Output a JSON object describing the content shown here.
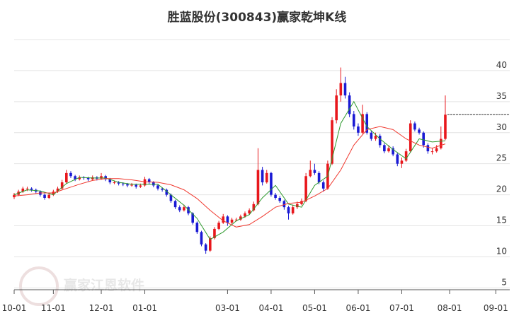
{
  "chart_data": {
    "type": "candlestick",
    "title": "胜蓝股份(300843)赢家乾坤K线",
    "watermark": "赢家江恩软件",
    "up_color": "#e8171c",
    "down_color": "#1a1ad4",
    "ylim": [
      4.7,
      45
    ],
    "yticks": [
      5,
      10,
      15,
      20,
      25,
      30,
      35,
      40
    ],
    "xlim": [
      0,
      113.8
    ],
    "xticks": [
      {
        "value": 0,
        "label": "10-01"
      },
      {
        "value": 9,
        "label": "11-01"
      },
      {
        "value": 20,
        "label": "12-01"
      },
      {
        "value": 30,
        "label": "01-01"
      },
      {
        "value": 49,
        "label": "03-01"
      },
      {
        "value": 59,
        "label": "04-01"
      },
      {
        "value": 69,
        "label": "05-01"
      },
      {
        "value": 79,
        "label": "06-01"
      },
      {
        "value": 89,
        "label": "07-01"
      },
      {
        "value": 100,
        "label": "08-01"
      },
      {
        "value": 110.6,
        "label": "09-01"
      }
    ],
    "grid": true,
    "last_price": 32.9,
    "candles": [
      [
        19.6,
        20.3,
        19.3,
        20
      ],
      [
        20,
        20.8,
        19.8,
        20.5
      ],
      [
        20.5,
        21.3,
        20.3,
        21
      ],
      [
        21,
        21.3,
        20.6,
        21
      ],
      [
        21,
        21.2,
        20.5,
        20.8
      ],
      [
        20.8,
        21,
        20.2,
        20.5
      ],
      [
        20.5,
        20.7,
        19.7,
        20
      ],
      [
        20,
        20.2,
        19.2,
        19.5
      ],
      [
        19.5,
        20.3,
        19.3,
        20
      ],
      [
        20,
        20.8,
        19.8,
        20.5
      ],
      [
        20.5,
        21.3,
        20.3,
        21
      ],
      [
        21,
        22.4,
        20.8,
        22
      ],
      [
        22,
        24,
        21.8,
        23.5
      ],
      [
        23.5,
        23.8,
        22.7,
        23
      ],
      [
        23,
        23.2,
        22.2,
        22.5
      ],
      [
        22.5,
        23.1,
        22.3,
        22.8
      ],
      [
        22.8,
        23,
        22.4,
        22.7
      ],
      [
        22.7,
        22.9,
        22.2,
        22.5
      ],
      [
        22.5,
        23.1,
        22.3,
        22.8
      ],
      [
        22.8,
        23,
        22.3,
        22.6
      ],
      [
        22.6,
        23.5,
        22.4,
        23
      ],
      [
        23,
        23.2,
        22.2,
        22.5
      ],
      [
        22.5,
        22.7,
        21.7,
        22
      ],
      [
        22,
        22.3,
        21.7,
        22
      ],
      [
        22,
        22.2,
        21.5,
        21.8
      ],
      [
        21.8,
        22,
        21.4,
        21.7
      ],
      [
        21.7,
        21.9,
        21.2,
        21.5
      ],
      [
        21.5,
        21.9,
        21.3,
        21.6
      ],
      [
        21.6,
        21.8,
        21,
        21.3
      ],
      [
        21.3,
        21.8,
        21.1,
        21.5
      ],
      [
        21.5,
        22.9,
        21.3,
        22.5
      ],
      [
        22.5,
        22.7,
        21.7,
        22
      ],
      [
        22,
        22.2,
        21.2,
        21.5
      ],
      [
        21.5,
        21.7,
        20.7,
        21
      ],
      [
        21,
        21.2,
        20.5,
        20.8
      ],
      [
        20.8,
        21,
        19.7,
        20
      ],
      [
        20,
        20.2,
        18.7,
        19
      ],
      [
        19,
        19.2,
        17.7,
        18
      ],
      [
        18,
        18.3,
        17.2,
        17.5
      ],
      [
        17.5,
        18.4,
        17.3,
        18
      ],
      [
        18,
        18.2,
        16.7,
        17
      ],
      [
        17,
        17.2,
        15.2,
        15.5
      ],
      [
        15.5,
        15.7,
        13.7,
        14
      ],
      [
        14,
        14.2,
        11.7,
        12
      ],
      [
        12,
        12.2,
        10.5,
        11
      ],
      [
        11,
        13.3,
        10.8,
        13
      ],
      [
        13,
        14.8,
        12.8,
        14.5
      ],
      [
        14.5,
        15.8,
        14.3,
        15.5
      ],
      [
        15.5,
        16.9,
        15.3,
        16.5
      ],
      [
        16.5,
        16.7,
        15,
        15.5
      ],
      [
        15.5,
        16.3,
        15.3,
        16
      ],
      [
        16,
        16.3,
        15.7,
        16
      ],
      [
        16,
        16.8,
        15.8,
        16.5
      ],
      [
        16.5,
        17.3,
        16.3,
        17
      ],
      [
        17,
        17.8,
        16.8,
        17.5
      ],
      [
        17.5,
        18.9,
        17.3,
        18.5
      ],
      [
        18.5,
        27.5,
        18.3,
        24
      ],
      [
        24,
        24.5,
        21.5,
        22
      ],
      [
        22,
        24,
        21.8,
        23.5
      ],
      [
        23.5,
        23.7,
        19.7,
        20
      ],
      [
        20,
        20.3,
        19.2,
        19.5
      ],
      [
        19.5,
        19.8,
        18.7,
        19
      ],
      [
        19,
        19.2,
        17.6,
        18
      ],
      [
        18,
        18.2,
        16,
        17
      ],
      [
        17,
        18.4,
        16.8,
        18
      ],
      [
        18,
        18.9,
        17.7,
        18.5
      ],
      [
        18.5,
        19.4,
        18.3,
        19
      ],
      [
        19,
        23.5,
        18.8,
        23
      ],
      [
        23,
        25.5,
        22.8,
        24
      ],
      [
        24,
        25,
        23.2,
        23.5
      ],
      [
        23.5,
        23.8,
        21.7,
        22
      ],
      [
        22,
        22.3,
        20.5,
        21
      ],
      [
        21,
        25.5,
        20.8,
        25
      ],
      [
        25,
        32.5,
        24.8,
        32
      ],
      [
        32,
        37,
        31.5,
        36
      ],
      [
        36,
        40.5,
        35,
        38
      ],
      [
        38,
        39,
        35.5,
        36
      ],
      [
        36,
        36.5,
        32.5,
        33
      ],
      [
        33,
        33.5,
        30.5,
        31
      ],
      [
        31,
        31.5,
        29.5,
        30
      ],
      [
        30,
        34.5,
        29.8,
        33
      ],
      [
        33,
        33.3,
        29.7,
        30
      ],
      [
        30,
        30.3,
        28.7,
        29
      ],
      [
        29,
        30,
        28.7,
        29.5
      ],
      [
        29.5,
        29.8,
        27.6,
        28
      ],
      [
        28,
        28.3,
        26.7,
        27
      ],
      [
        27,
        28,
        26.8,
        27.5
      ],
      [
        27.5,
        27.8,
        26.2,
        26.5
      ],
      [
        26.5,
        26.8,
        24.6,
        25
      ],
      [
        25,
        26,
        24.3,
        25.5
      ],
      [
        25.5,
        27.4,
        25.3,
        27
      ],
      [
        27,
        32,
        26.8,
        31.5
      ],
      [
        31.5,
        31.8,
        30.2,
        30.5
      ],
      [
        30.5,
        30.8,
        29.7,
        30
      ],
      [
        30,
        30.2,
        27.6,
        28
      ],
      [
        28,
        28.3,
        26.6,
        27
      ],
      [
        27,
        27.5,
        26.5,
        27
      ],
      [
        27,
        28,
        26.8,
        27.5
      ],
      [
        27.5,
        31,
        27.3,
        29
      ],
      [
        29,
        36,
        28.8,
        32.9
      ]
    ],
    "lines": [
      {
        "color": "#2e9a2e",
        "x": [
          0,
          3,
          6,
          9,
          12,
          15,
          18,
          21,
          24,
          27,
          30,
          33,
          36,
          39,
          42,
          45,
          48,
          51,
          54,
          57,
          60,
          63,
          66,
          69,
          72,
          75,
          78,
          81,
          84,
          87,
          90,
          93,
          96,
          99
        ],
        "values": [
          20,
          20.8,
          20.6,
          20,
          21.8,
          22.8,
          22.7,
          22.7,
          22,
          21.7,
          21.7,
          21.7,
          20,
          18.3,
          16.2,
          12.8,
          14,
          15.8,
          16.8,
          19.5,
          21.5,
          18.5,
          18,
          21.5,
          23,
          31.5,
          35,
          31,
          29,
          27.3,
          25.8,
          29,
          28.5,
          28.7
        ]
      },
      {
        "color": "#f0392f",
        "x": [
          0,
          3,
          6,
          9,
          12,
          15,
          18,
          21,
          24,
          27,
          30,
          33,
          36,
          39,
          42,
          45,
          48,
          51,
          54,
          57,
          60,
          63,
          66,
          69,
          72,
          75,
          78,
          81,
          84,
          87,
          90,
          93,
          96,
          99
        ],
        "values": [
          19.8,
          20,
          20.3,
          20.3,
          21,
          21.7,
          22.3,
          22.6,
          22.6,
          22.4,
          22.1,
          22,
          21.6,
          20.8,
          19.4,
          17.5,
          15.8,
          14.8,
          15.2,
          16.5,
          18,
          18.6,
          18.8,
          19.8,
          21,
          24,
          28,
          30.5,
          31,
          30.5,
          29,
          28,
          27.5,
          28.2
        ]
      }
    ]
  }
}
